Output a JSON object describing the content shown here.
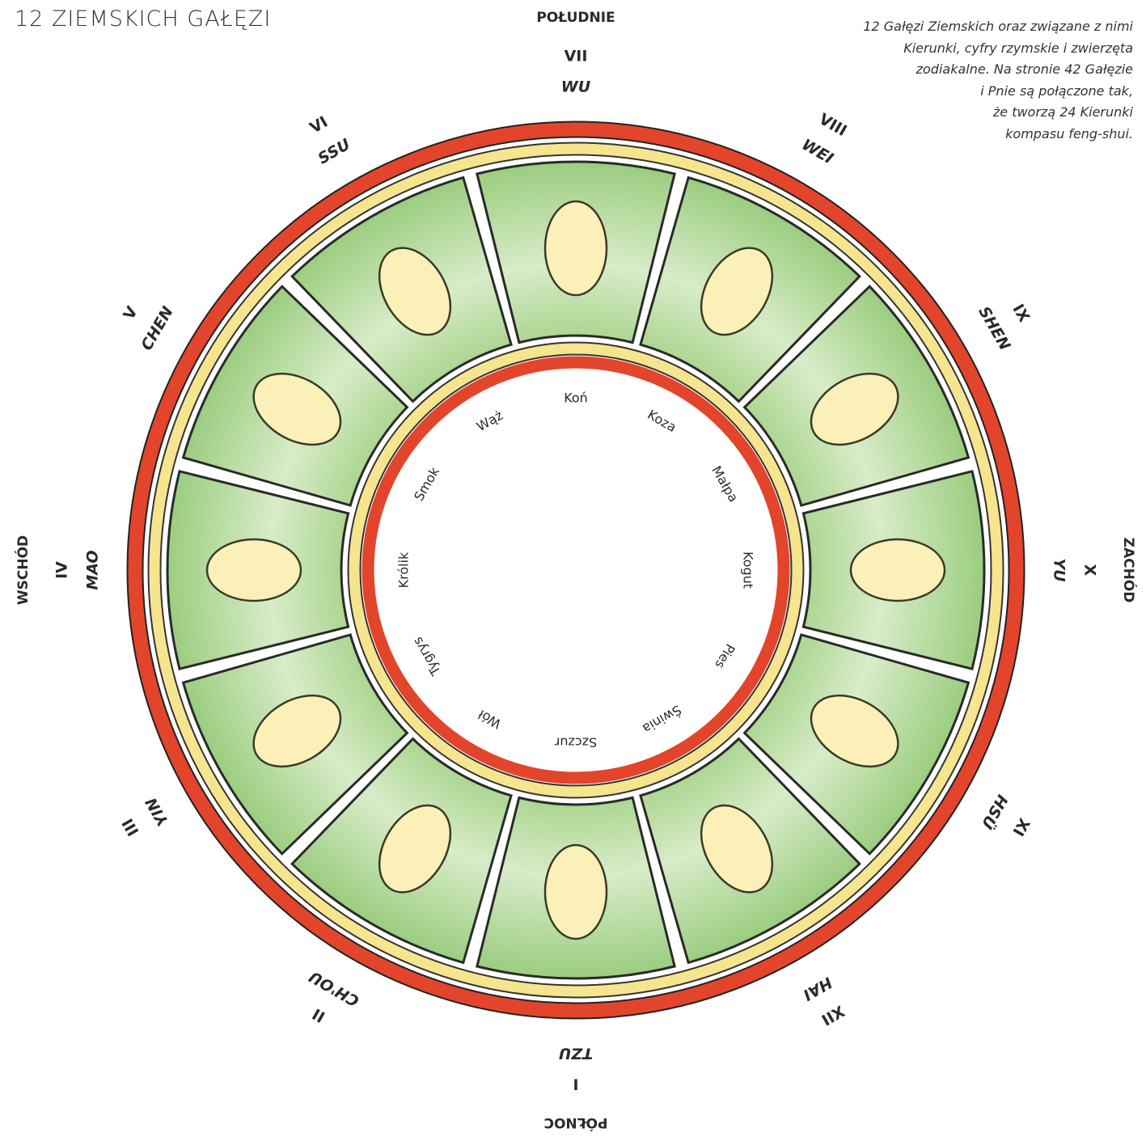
{
  "title": "12 ZIEMSKICH GAŁĘZI",
  "caption": [
    "12 Gałęzi Ziemskich oraz związane z nimi",
    "Kierunki, cyfry rzymskie i zwierzęta",
    "zodiakalne. Na stronie 42 Gałęzie",
    "i Pnie są połączone tak,",
    "że tworzą 24 Kierunki",
    "kompasu feng-shui."
  ],
  "directions": [
    "POŁUDNIE",
    "ZACHÓD",
    "PÓŁNOC",
    "WSCHÓD"
  ],
  "branches": [
    {
      "numeral": "VII",
      "name": "WU",
      "animal": "Koń"
    },
    {
      "numeral": "VIII",
      "name": "WEI",
      "animal": "Koza"
    },
    {
      "numeral": "IX",
      "name": "SHEN",
      "animal": "Małpa"
    },
    {
      "numeral": "X",
      "name": "YU",
      "animal": "Kogut"
    },
    {
      "numeral": "XI",
      "name": "HSÜ",
      "animal": "Pies"
    },
    {
      "numeral": "XII",
      "name": "HAI",
      "animal": "Świnia"
    },
    {
      "numeral": "I",
      "name": "TZU",
      "animal": "Szczur"
    },
    {
      "numeral": "II",
      "name": "CH'OU",
      "animal": "Wół"
    },
    {
      "numeral": "III",
      "name": "YIN",
      "animal": "Tygrys"
    },
    {
      "numeral": "IV",
      "name": "MAO",
      "animal": "Królik"
    },
    {
      "numeral": "V",
      "name": "CHEN",
      "animal": "Smok"
    },
    {
      "numeral": "VI",
      "name": "SSU",
      "animal": "Wąż"
    }
  ]
}
